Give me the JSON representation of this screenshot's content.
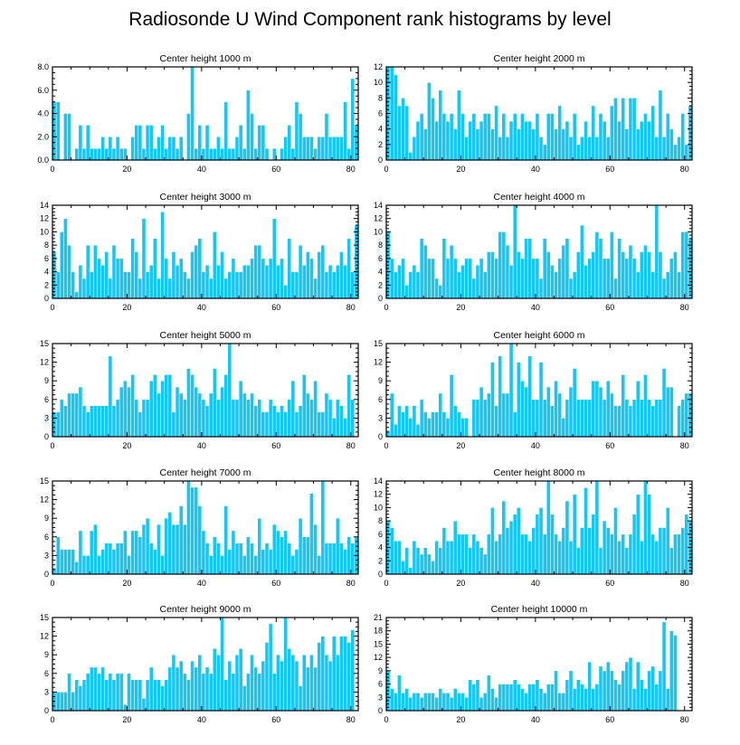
{
  "title": "Radiosonde U Wind Component rank histograms by level",
  "colors": {
    "bar": "#16c6f5",
    "bar_edge": "#ffffff",
    "axis": "#000000"
  },
  "chart_data": [
    {
      "type": "bar",
      "title": "Center height 1000 m",
      "xlim": [
        0,
        82
      ],
      "ylim": [
        0,
        8
      ],
      "xticks": [
        "0",
        "20",
        "40",
        "60",
        "80"
      ],
      "yticks": [
        "0.0",
        "2.0",
        "4.0",
        "6.0",
        "8.0"
      ],
      "values": [
        5,
        5,
        0,
        4,
        4,
        0,
        1,
        3,
        1,
        3,
        1,
        1,
        1,
        2,
        1,
        2,
        1,
        2,
        1,
        1,
        0,
        2,
        3,
        3,
        1,
        3,
        3,
        1,
        2,
        3,
        1,
        2,
        2,
        1,
        2,
        0,
        4,
        8,
        1,
        3,
        1,
        3,
        1,
        1,
        2,
        1,
        5,
        1,
        1,
        2,
        3,
        1,
        6,
        4,
        1,
        3,
        3,
        1,
        0,
        1,
        0,
        1,
        2,
        3,
        1,
        5,
        4,
        2,
        2,
        2,
        1,
        2,
        2,
        4,
        2,
        2,
        2,
        2,
        5,
        1,
        7,
        3,
        3,
        3,
        2
      ]
    },
    {
      "type": "bar",
      "title": "Center height 2000 m",
      "xlim": [
        0,
        82
      ],
      "ylim": [
        0,
        12
      ],
      "xticks": [
        "0",
        "20",
        "40",
        "60",
        "80"
      ],
      "yticks": [
        "0",
        "2",
        "4",
        "6",
        "8",
        "10",
        "12"
      ],
      "values": [
        12,
        12,
        11,
        7,
        8,
        7,
        1,
        3,
        5,
        6,
        4,
        10,
        8,
        5,
        9,
        6,
        5,
        6,
        4,
        9,
        6,
        3,
        5,
        6,
        4,
        5,
        6,
        6,
        4,
        7,
        3,
        6,
        3,
        5,
        6,
        4,
        6,
        5,
        5,
        4,
        6,
        3,
        2,
        6,
        6,
        4,
        7,
        4,
        5,
        3,
        6,
        2,
        3,
        5,
        3,
        7,
        3,
        6,
        5,
        3,
        7,
        8,
        5,
        8,
        4,
        8,
        8,
        4,
        5,
        6,
        5,
        7,
        3,
        9,
        3,
        6,
        4,
        2,
        3,
        6,
        2,
        7,
        6,
        4,
        4
      ]
    },
    {
      "type": "bar",
      "title": "Center height 3000 m",
      "xlim": [
        0,
        82
      ],
      "ylim": [
        0,
        14
      ],
      "xticks": [
        "0",
        "20",
        "40",
        "60",
        "80"
      ],
      "yticks": [
        "0",
        "2",
        "4",
        "6",
        "8",
        "10",
        "12",
        "14"
      ],
      "values": [
        7,
        4,
        10,
        12,
        8,
        4,
        1,
        5,
        3,
        8,
        4,
        8,
        6,
        5,
        7,
        3,
        8,
        6,
        6,
        4,
        4,
        9,
        7,
        3,
        12,
        4,
        5,
        9,
        3,
        13,
        6,
        3,
        7,
        5,
        6,
        4,
        3,
        7,
        8,
        9,
        4,
        5,
        3,
        10,
        5,
        7,
        3,
        4,
        6,
        4,
        4,
        5,
        5,
        6,
        8,
        8,
        6,
        5,
        6,
        12,
        5,
        6,
        2,
        9,
        4,
        4,
        8,
        5,
        7,
        6,
        3,
        7,
        8,
        4,
        5,
        4,
        5,
        7,
        5,
        9,
        4,
        11,
        8
      ]
    },
    {
      "type": "bar",
      "title": "Center height 4000 m",
      "xlim": [
        0,
        82
      ],
      "ylim": [
        0,
        14
      ],
      "xticks": [
        "0",
        "20",
        "40",
        "60",
        "80"
      ],
      "yticks": [
        "0",
        "2",
        "4",
        "6",
        "8",
        "10",
        "12",
        "14"
      ],
      "values": [
        10,
        6,
        4,
        5,
        6,
        2,
        4,
        5,
        4,
        9,
        8,
        6,
        6,
        3,
        2,
        9,
        6,
        8,
        6,
        4,
        5,
        6,
        6,
        3,
        5,
        6,
        4,
        7,
        7,
        6,
        10,
        10,
        8,
        5,
        14,
        7,
        6,
        9,
        9,
        6,
        6,
        3,
        9,
        7,
        5,
        4,
        6,
        8,
        9,
        3,
        4,
        7,
        11,
        5,
        6,
        7,
        10,
        9,
        6,
        6,
        10,
        3,
        9,
        7,
        6,
        8,
        6,
        4,
        7,
        8,
        7,
        4,
        14,
        7,
        3,
        4,
        6,
        7,
        4,
        10,
        10,
        9
      ]
    },
    {
      "type": "bar",
      "title": "Center height 5000 m",
      "xlim": [
        0,
        82
      ],
      "ylim": [
        0,
        15
      ],
      "xticks": [
        "0",
        "20",
        "40",
        "60",
        "80"
      ],
      "yticks": [
        "0",
        "3",
        "6",
        "9",
        "12",
        "15"
      ],
      "values": [
        4,
        4,
        6,
        5,
        7,
        7,
        7,
        8,
        5,
        4,
        5,
        5,
        5,
        5,
        5,
        13,
        5,
        6,
        8,
        9,
        8,
        10,
        6,
        4,
        6,
        6,
        9,
        10,
        7,
        9,
        10,
        10,
        4,
        8,
        7,
        6,
        11,
        10,
        8,
        7,
        6,
        5,
        7,
        11,
        6,
        8,
        10,
        15,
        6,
        6,
        9,
        7,
        6,
        7,
        5,
        6,
        4,
        4,
        6,
        5,
        4,
        5,
        4,
        6,
        9,
        4,
        5,
        10,
        7,
        6,
        9,
        4,
        4,
        7,
        6,
        3,
        6,
        5,
        3,
        10,
        6
      ]
    },
    {
      "type": "bar",
      "title": "Center height 6000 m",
      "xlim": [
        0,
        82
      ],
      "ylim": [
        0,
        15
      ],
      "xticks": [
        "0",
        "20",
        "40",
        "60",
        "80"
      ],
      "yticks": [
        "0",
        "3",
        "6",
        "9",
        "12",
        "15"
      ],
      "values": [
        1,
        7,
        2,
        5,
        4,
        5,
        3,
        5,
        2,
        6,
        4,
        3,
        4,
        4,
        7,
        4,
        3,
        10,
        5,
        4,
        3,
        3,
        0,
        6,
        6,
        8,
        6,
        7,
        12,
        5,
        13,
        7,
        7,
        15,
        4,
        12,
        9,
        8,
        13,
        6,
        6,
        12,
        6,
        8,
        5,
        9,
        7,
        3,
        6,
        8,
        11,
        6,
        6,
        6,
        6,
        9,
        9,
        8,
        6,
        9,
        7,
        5,
        5,
        10,
        6,
        5,
        6,
        9,
        6,
        10,
        6,
        5,
        6,
        6,
        11,
        8,
        8,
        0,
        5,
        6,
        7,
        7
      ]
    },
    {
      "type": "bar",
      "title": "Center height 7000 m",
      "xlim": [
        0,
        82
      ],
      "ylim": [
        0,
        15
      ],
      "xticks": [
        "0",
        "20",
        "40",
        "60",
        "80"
      ],
      "yticks": [
        "0",
        "3",
        "6",
        "9",
        "12",
        "15"
      ],
      "values": [
        1,
        6,
        4,
        4,
        4,
        4,
        2,
        7,
        3,
        3,
        7,
        8,
        3,
        4,
        5,
        5,
        4,
        5,
        5,
        7,
        3,
        7,
        7,
        6,
        8,
        9,
        5,
        4,
        8,
        3,
        9,
        10,
        8,
        8,
        11,
        8,
        15,
        14,
        14,
        11,
        7,
        5,
        3,
        6,
        5,
        3,
        11,
        4,
        7,
        5,
        5,
        3,
        6,
        5,
        3,
        9,
        4,
        5,
        4,
        8,
        7,
        6,
        7,
        5,
        3,
        4,
        9,
        6,
        6,
        13,
        8,
        3,
        15,
        5,
        5,
        5,
        9,
        5,
        4,
        6,
        5,
        6,
        6
      ]
    },
    {
      "type": "bar",
      "title": "Center height 8000 m",
      "xlim": [
        0,
        82
      ],
      "ylim": [
        0,
        14
      ],
      "xticks": [
        "0",
        "20",
        "40",
        "60",
        "80"
      ],
      "yticks": [
        "0",
        "2",
        "4",
        "6",
        "8",
        "10",
        "12",
        "14"
      ],
      "values": [
        8,
        7,
        5,
        5,
        2,
        4,
        1,
        5,
        4,
        3,
        4,
        3,
        2,
        5,
        4,
        7,
        5,
        5,
        8,
        6,
        6,
        6,
        4,
        6,
        5,
        4,
        3,
        6,
        10,
        5,
        6,
        11,
        7,
        8,
        9,
        10,
        6,
        6,
        5,
        7,
        9,
        10,
        6,
        14,
        9,
        6,
        5,
        7,
        11,
        5,
        12,
        4,
        7,
        13,
        7,
        9,
        14,
        4,
        8,
        7,
        6,
        10,
        5,
        6,
        4,
        6,
        9,
        12,
        5,
        14,
        12,
        6,
        5,
        7,
        7,
        10,
        4,
        6,
        6,
        7,
        9,
        8
      ]
    },
    {
      "type": "bar",
      "title": "Center height 9000 m",
      "xlim": [
        0,
        82
      ],
      "ylim": [
        0,
        15
      ],
      "xticks": [
        "0",
        "20",
        "40",
        "60",
        "80"
      ],
      "yticks": [
        "0",
        "3",
        "6",
        "9",
        "12",
        "15"
      ],
      "values": [
        3,
        3,
        3,
        3,
        6,
        3,
        5,
        4,
        5,
        6,
        7,
        7,
        6,
        7,
        5,
        6,
        5,
        6,
        6,
        1,
        6,
        5,
        5,
        5,
        2,
        5,
        7,
        5,
        5,
        4,
        5,
        7,
        9,
        7,
        8,
        6,
        5,
        8,
        7,
        9,
        6,
        7,
        6,
        10,
        9,
        15,
        5,
        8,
        6,
        9,
        10,
        4,
        6,
        9,
        7,
        6,
        8,
        11,
        14,
        6,
        9,
        8,
        15,
        10,
        9,
        8,
        4,
        9,
        7,
        9,
        7,
        11,
        12,
        9,
        8,
        12,
        9,
        12,
        12,
        11,
        13
      ]
    },
    {
      "type": "bar",
      "title": "Center height 10000 m",
      "xlim": [
        0,
        82
      ],
      "ylim": [
        0,
        21
      ],
      "xticks": [
        "0",
        "20",
        "40",
        "60",
        "80"
      ],
      "yticks": [
        "0",
        "3",
        "6",
        "9",
        "12",
        "15",
        "18",
        "21"
      ],
      "values": [
        9,
        5,
        4,
        8,
        4,
        5,
        3,
        4,
        4,
        3,
        4,
        4,
        4,
        3,
        5,
        4,
        4,
        3,
        5,
        4,
        4,
        3,
        7,
        6,
        7,
        3,
        4,
        8,
        5,
        3,
        6,
        6,
        6,
        6,
        7,
        6,
        5,
        4,
        6,
        6,
        7,
        5,
        4,
        6,
        6,
        9,
        4,
        4,
        7,
        9,
        5,
        7,
        6,
        5,
        11,
        5,
        6,
        10,
        9,
        11,
        9,
        7,
        6,
        9,
        11,
        12,
        5,
        11,
        7,
        5,
        9,
        10,
        6,
        9,
        20,
        5,
        18,
        17
      ]
    }
  ]
}
